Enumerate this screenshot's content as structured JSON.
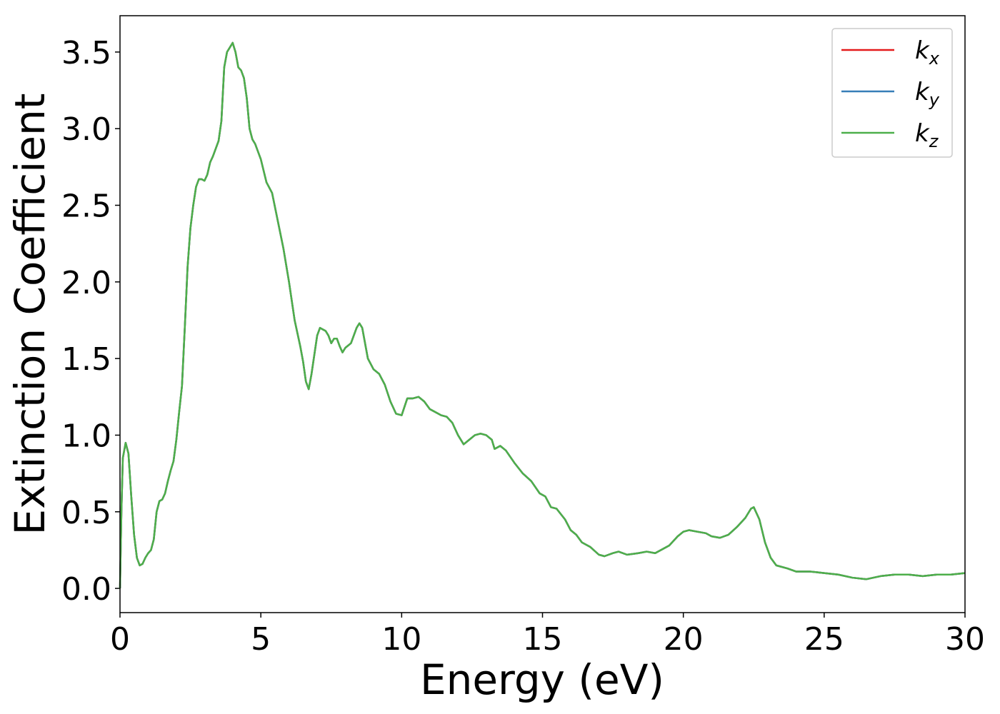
{
  "chart_data": {
    "type": "line",
    "xlabel": "Energy (eV)",
    "ylabel": "Extinction Coefficient",
    "x": [
      0,
      0.05,
      0.1,
      0.2,
      0.3,
      0.4,
      0.5,
      0.6,
      0.7,
      0.8,
      0.9,
      1.0,
      1.1,
      1.2,
      1.3,
      1.4,
      1.5,
      1.6,
      1.7,
      1.8,
      1.9,
      2.0,
      2.1,
      2.2,
      2.3,
      2.4,
      2.5,
      2.6,
      2.7,
      2.8,
      2.9,
      3.0,
      3.1,
      3.2,
      3.3,
      3.4,
      3.5,
      3.6,
      3.7,
      3.8,
      3.9,
      4.0,
      4.1,
      4.2,
      4.3,
      4.4,
      4.5,
      4.6,
      4.7,
      4.8,
      4.9,
      5.0,
      5.2,
      5.4,
      5.6,
      5.8,
      6.0,
      6.2,
      6.4,
      6.5,
      6.6,
      6.7,
      6.8,
      7.0,
      7.1,
      7.2,
      7.3,
      7.4,
      7.5,
      7.6,
      7.7,
      7.8,
      7.9,
      8.0,
      8.2,
      8.4,
      8.5,
      8.6,
      8.8,
      9.0,
      9.2,
      9.4,
      9.6,
      9.8,
      10.0,
      10.2,
      10.4,
      10.6,
      10.8,
      11.0,
      11.2,
      11.4,
      11.6,
      11.8,
      12.0,
      12.2,
      12.4,
      12.6,
      12.8,
      13.0,
      13.2,
      13.3,
      13.5,
      13.7,
      14.0,
      14.3,
      14.6,
      14.9,
      15.1,
      15.3,
      15.5,
      15.8,
      16.0,
      16.2,
      16.4,
      16.7,
      17.0,
      17.2,
      17.5,
      17.7,
      18.0,
      18.4,
      18.7,
      19.0,
      19.5,
      19.8,
      20.0,
      20.2,
      20.5,
      20.8,
      21.0,
      21.3,
      21.6,
      21.9,
      22.2,
      22.4,
      22.5,
      22.7,
      22.9,
      23.1,
      23.3,
      23.7,
      24.0,
      24.5,
      25.0,
      25.5,
      26.0,
      26.5,
      27.0,
      27.5,
      28.0,
      28.5,
      29.0,
      29.5,
      30.0
    ],
    "series": [
      {
        "name": "kx",
        "color": "#e41a1c",
        "values": [
          0,
          0.5,
          0.85,
          0.95,
          0.88,
          0.6,
          0.35,
          0.2,
          0.15,
          0.16,
          0.2,
          0.23,
          0.25,
          0.32,
          0.5,
          0.57,
          0.58,
          0.62,
          0.7,
          0.77,
          0.83,
          0.97,
          1.15,
          1.32,
          1.7,
          2.1,
          2.35,
          2.5,
          2.62,
          2.67,
          2.67,
          2.66,
          2.7,
          2.78,
          2.82,
          2.87,
          2.92,
          3.05,
          3.4,
          3.5,
          3.53,
          3.56,
          3.5,
          3.4,
          3.38,
          3.33,
          3.2,
          3.0,
          2.93,
          2.9,
          2.85,
          2.8,
          2.65,
          2.58,
          2.4,
          2.22,
          2.0,
          1.75,
          1.58,
          1.48,
          1.35,
          1.3,
          1.4,
          1.65,
          1.7,
          1.69,
          1.68,
          1.65,
          1.6,
          1.63,
          1.63,
          1.58,
          1.54,
          1.57,
          1.6,
          1.7,
          1.73,
          1.7,
          1.5,
          1.43,
          1.4,
          1.33,
          1.22,
          1.14,
          1.13,
          1.24,
          1.24,
          1.25,
          1.22,
          1.17,
          1.15,
          1.13,
          1.12,
          1.08,
          1.0,
          0.94,
          0.97,
          1.0,
          1.01,
          1.0,
          0.97,
          0.91,
          0.93,
          0.9,
          0.82,
          0.75,
          0.7,
          0.62,
          0.6,
          0.53,
          0.52,
          0.45,
          0.38,
          0.35,
          0.3,
          0.27,
          0.22,
          0.21,
          0.23,
          0.24,
          0.22,
          0.23,
          0.24,
          0.23,
          0.28,
          0.34,
          0.37,
          0.38,
          0.37,
          0.36,
          0.34,
          0.33,
          0.35,
          0.4,
          0.46,
          0.52,
          0.53,
          0.45,
          0.3,
          0.2,
          0.15,
          0.13,
          0.11,
          0.11,
          0.1,
          0.09,
          0.07,
          0.06,
          0.08,
          0.09,
          0.09,
          0.08,
          0.09,
          0.09,
          0.1
        ]
      },
      {
        "name": "ky",
        "color": "#377eb8",
        "values": [
          0,
          0.5,
          0.85,
          0.95,
          0.88,
          0.6,
          0.35,
          0.2,
          0.15,
          0.16,
          0.2,
          0.23,
          0.25,
          0.32,
          0.5,
          0.57,
          0.58,
          0.62,
          0.7,
          0.77,
          0.83,
          0.97,
          1.15,
          1.32,
          1.7,
          2.1,
          2.35,
          2.5,
          2.62,
          2.67,
          2.67,
          2.66,
          2.7,
          2.78,
          2.82,
          2.87,
          2.92,
          3.05,
          3.4,
          3.5,
          3.53,
          3.56,
          3.5,
          3.4,
          3.38,
          3.33,
          3.2,
          3.0,
          2.93,
          2.9,
          2.85,
          2.8,
          2.65,
          2.58,
          2.4,
          2.22,
          2.0,
          1.75,
          1.58,
          1.48,
          1.35,
          1.3,
          1.4,
          1.65,
          1.7,
          1.69,
          1.68,
          1.65,
          1.6,
          1.63,
          1.63,
          1.58,
          1.54,
          1.57,
          1.6,
          1.7,
          1.73,
          1.7,
          1.5,
          1.43,
          1.4,
          1.33,
          1.22,
          1.14,
          1.13,
          1.24,
          1.24,
          1.25,
          1.22,
          1.17,
          1.15,
          1.13,
          1.12,
          1.08,
          1.0,
          0.94,
          0.97,
          1.0,
          1.01,
          1.0,
          0.97,
          0.91,
          0.93,
          0.9,
          0.82,
          0.75,
          0.7,
          0.62,
          0.6,
          0.53,
          0.52,
          0.45,
          0.38,
          0.35,
          0.3,
          0.27,
          0.22,
          0.21,
          0.23,
          0.24,
          0.22,
          0.23,
          0.24,
          0.23,
          0.28,
          0.34,
          0.37,
          0.38,
          0.37,
          0.36,
          0.34,
          0.33,
          0.35,
          0.4,
          0.46,
          0.52,
          0.53,
          0.45,
          0.3,
          0.2,
          0.15,
          0.13,
          0.11,
          0.11,
          0.1,
          0.09,
          0.07,
          0.06,
          0.08,
          0.09,
          0.09,
          0.08,
          0.09,
          0.09,
          0.1
        ]
      },
      {
        "name": "kz",
        "color": "#4daf4a",
        "values": [
          0,
          0.5,
          0.85,
          0.95,
          0.88,
          0.6,
          0.35,
          0.2,
          0.15,
          0.16,
          0.2,
          0.23,
          0.25,
          0.32,
          0.5,
          0.57,
          0.58,
          0.62,
          0.7,
          0.77,
          0.83,
          0.97,
          1.15,
          1.32,
          1.7,
          2.1,
          2.35,
          2.5,
          2.62,
          2.67,
          2.67,
          2.66,
          2.7,
          2.78,
          2.82,
          2.87,
          2.92,
          3.05,
          3.4,
          3.5,
          3.53,
          3.56,
          3.5,
          3.4,
          3.38,
          3.33,
          3.2,
          3.0,
          2.93,
          2.9,
          2.85,
          2.8,
          2.65,
          2.58,
          2.4,
          2.22,
          2.0,
          1.75,
          1.58,
          1.48,
          1.35,
          1.3,
          1.4,
          1.65,
          1.7,
          1.69,
          1.68,
          1.65,
          1.6,
          1.63,
          1.63,
          1.58,
          1.54,
          1.57,
          1.6,
          1.7,
          1.73,
          1.7,
          1.5,
          1.43,
          1.4,
          1.33,
          1.22,
          1.14,
          1.13,
          1.24,
          1.24,
          1.25,
          1.22,
          1.17,
          1.15,
          1.13,
          1.12,
          1.08,
          1.0,
          0.94,
          0.97,
          1.0,
          1.01,
          1.0,
          0.97,
          0.91,
          0.93,
          0.9,
          0.82,
          0.75,
          0.7,
          0.62,
          0.6,
          0.53,
          0.52,
          0.45,
          0.38,
          0.35,
          0.3,
          0.27,
          0.22,
          0.21,
          0.23,
          0.24,
          0.22,
          0.23,
          0.24,
          0.23,
          0.28,
          0.34,
          0.37,
          0.38,
          0.37,
          0.36,
          0.34,
          0.33,
          0.35,
          0.4,
          0.46,
          0.52,
          0.53,
          0.45,
          0.3,
          0.2,
          0.15,
          0.13,
          0.11,
          0.11,
          0.1,
          0.09,
          0.07,
          0.06,
          0.08,
          0.09,
          0.09,
          0.08,
          0.09,
          0.09,
          0.1
        ]
      }
    ],
    "xlim": [
      0,
      30
    ],
    "xticks": [
      0,
      5,
      10,
      15,
      20,
      25,
      30
    ],
    "ylim": [
      -0.158,
      3.737
    ],
    "yticks": [
      {
        "value": 0,
        "label": "0.0"
      },
      0.5,
      {
        "value": 1,
        "label": "1.0"
      },
      1.5,
      {
        "value": 2,
        "label": "2.0"
      },
      2.5,
      {
        "value": 3,
        "label": "3.0"
      },
      3.5
    ],
    "legend": "upper right"
  }
}
